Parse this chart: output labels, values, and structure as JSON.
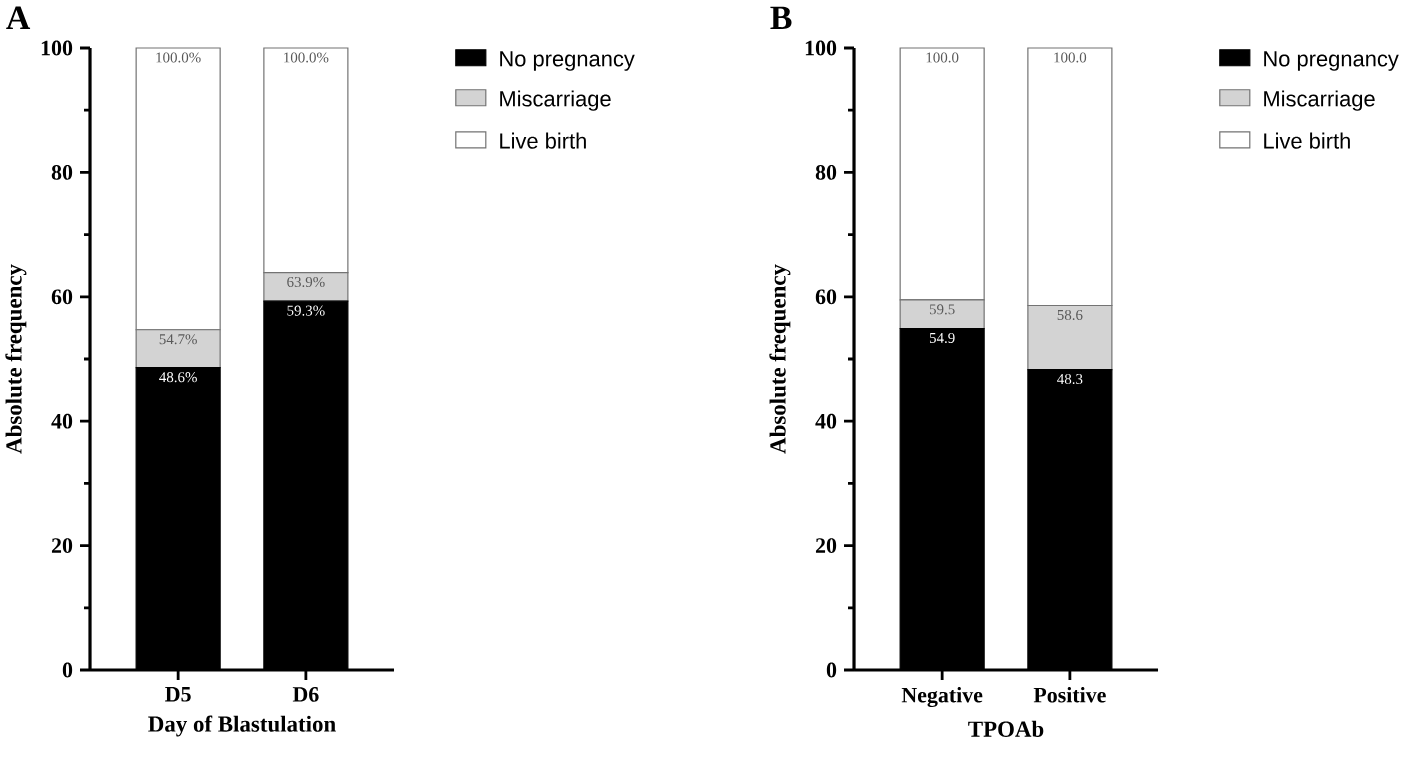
{
  "chart_data": [
    {
      "type": "bar",
      "stacked": true,
      "title": "A",
      "xlabel": "Day of Blastulation",
      "ylabel": "Absolute frequency",
      "categories": [
        "D5",
        "D6"
      ],
      "series": [
        {
          "name": "No pregnancy",
          "color": "#000000",
          "values": [
            48.6,
            59.3
          ]
        },
        {
          "name": "Miscarriage",
          "color": "#d3d3d3",
          "values": [
            6.1,
            4.6
          ]
        },
        {
          "name": "Live birth",
          "color": "#ffffff",
          "values": [
            45.3,
            36.1
          ]
        }
      ],
      "annotations": [
        {
          "text": "48.6%",
          "x": "D5",
          "y": 48.6
        },
        {
          "text": "59.3%",
          "x": "D6",
          "y": 59.3
        },
        {
          "text": "54.7%",
          "x": "D5",
          "y": 54.7
        },
        {
          "text": "63.9%",
          "x": "D6",
          "y": 63.9
        },
        {
          "text": "100.0%",
          "x": "D5",
          "y": 100
        },
        {
          "text": "100.0%",
          "x": "D6",
          "y": 100
        }
      ],
      "ylim": [
        0,
        100
      ],
      "yticks": [
        0,
        20,
        40,
        60,
        80,
        100
      ],
      "legend": "top right"
    },
    {
      "type": "bar",
      "stacked": true,
      "title": "B",
      "xlabel": "TPOAb",
      "ylabel": "Absolute frequency",
      "categories": [
        "Negative",
        "Positive"
      ],
      "series": [
        {
          "name": "No pregnancy",
          "color": "#000000",
          "values": [
            54.9,
            48.3
          ]
        },
        {
          "name": "Miscarriage",
          "color": "#d3d3d3",
          "values": [
            4.6,
            10.3
          ]
        },
        {
          "name": "Live birth",
          "color": "#ffffff",
          "values": [
            40.5,
            41.4
          ]
        }
      ],
      "annotations": [
        {
          "text": "54.9",
          "x": "Negative",
          "y": 54.9
        },
        {
          "text": "48.3",
          "x": "Positive",
          "y": 48.3
        },
        {
          "text": "59.5",
          "x": "Negative",
          "y": 59.5
        },
        {
          "text": "58.6",
          "x": "Positive",
          "y": 58.6
        },
        {
          "text": "100.0",
          "x": "Negative",
          "y": 100
        },
        {
          "text": "100.0",
          "x": "Positive",
          "y": 100
        }
      ],
      "ylim": [
        0,
        100
      ],
      "yticks": [
        0,
        20,
        40,
        60,
        80,
        100
      ],
      "legend": "top right"
    }
  ]
}
